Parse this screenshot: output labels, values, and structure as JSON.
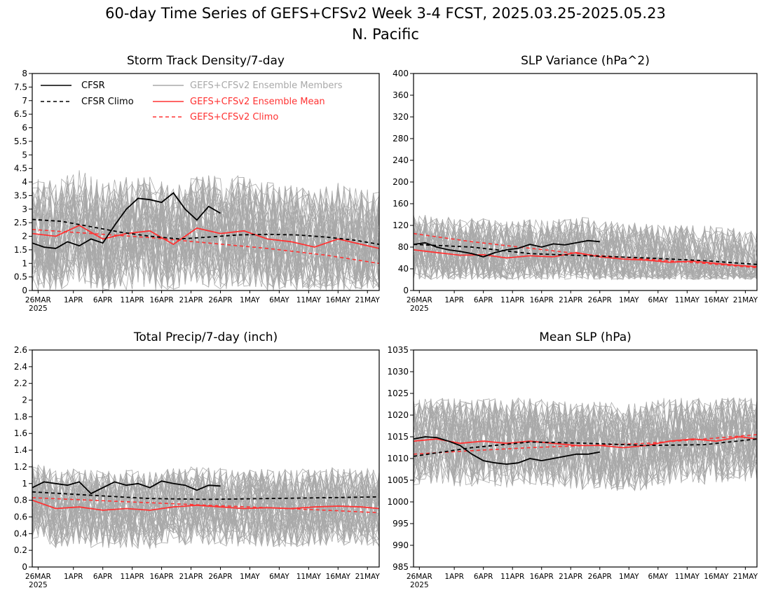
{
  "header": {
    "title_line1": "60-day Time Series of GEFS+CFSv2 Week 3-4 FCST, 2025.03.25-2025.05.23",
    "title_line2": "N. Pacific"
  },
  "colors": {
    "cfsr": "#000000",
    "members": "#a9a9a9",
    "ens_mean": "#ff3333",
    "gefs_climo": "#ff3333"
  },
  "legend": {
    "cfsr": "CFSR",
    "cfsr_climo": "CFSR Climo",
    "members": "GEFS+CFSv2 Ensemble Members",
    "ens_mean": "GEFS+CFSv2 Ensemble Mean",
    "gefs_climo": "GEFS+CFSv2 Climo"
  },
  "x_axis": {
    "year_label": "2025",
    "tick_labels": [
      "26MAR",
      "1APR",
      "6APR",
      "11APR",
      "16APR",
      "21APR",
      "26APR",
      "1MAY",
      "6MAY",
      "11MAY",
      "16MAY",
      "21MAY"
    ],
    "tick_days": [
      1,
      7,
      12,
      17,
      22,
      27,
      32,
      37,
      42,
      47,
      52,
      57
    ],
    "xlim": [
      0,
      59
    ]
  },
  "chart_data": [
    {
      "type": "line",
      "title": "Storm Track Density/7-day",
      "ylim": [
        0,
        8
      ],
      "yticks": [
        "0",
        "0.5",
        "1",
        "1.5",
        "2",
        "2.5",
        "3",
        "3.5",
        "4",
        "4.5",
        "5",
        "5.5",
        "6",
        "6.5",
        "7",
        "7.5",
        "8"
      ],
      "members_range": [
        0.0,
        4.9
      ],
      "cfsr_x": [
        0,
        2,
        4,
        6,
        8,
        10,
        12,
        14,
        16,
        18,
        20,
        22,
        24,
        26,
        28,
        30,
        32
      ],
      "cfsr_y": [
        1.75,
        1.6,
        1.55,
        1.8,
        1.65,
        1.9,
        1.75,
        2.4,
        3.0,
        3.4,
        3.35,
        3.25,
        3.6,
        3.0,
        2.6,
        3.1,
        2.85
      ],
      "cfsr_climo_x": [
        0,
        5,
        10,
        15,
        20,
        25,
        30,
        35,
        40,
        45,
        50,
        55,
        59
      ],
      "cfsr_climo_y": [
        2.62,
        2.55,
        2.35,
        2.15,
        2.0,
        1.9,
        1.97,
        2.05,
        2.07,
        2.05,
        1.97,
        1.85,
        1.7
      ],
      "ens_mean_x": [
        0,
        4,
        8,
        12,
        16,
        20,
        24,
        28,
        32,
        36,
        40,
        44,
        48,
        52,
        56,
        59
      ],
      "ens_mean_y": [
        2.1,
        2.0,
        2.4,
        1.9,
        2.1,
        2.2,
        1.7,
        2.3,
        2.1,
        2.2,
        1.9,
        1.8,
        1.6,
        1.9,
        1.7,
        1.55
      ],
      "gefs_climo_x": [
        0,
        10,
        20,
        30,
        40,
        50,
        59
      ],
      "gefs_climo_y": [
        2.25,
        2.1,
        1.95,
        1.75,
        1.55,
        1.3,
        1.0
      ]
    },
    {
      "type": "line",
      "title": "SLP Variance (hPa^2)",
      "ylim": [
        0,
        400
      ],
      "yticks": [
        "0",
        "40",
        "80",
        "120",
        "160",
        "200",
        "240",
        "280",
        "320",
        "360",
        "400"
      ],
      "members_range": [
        20,
        180
      ],
      "cfsr_x": [
        0,
        2,
        4,
        6,
        8,
        10,
        12,
        14,
        16,
        18,
        20,
        22,
        24,
        26,
        28,
        30,
        32
      ],
      "cfsr_y": [
        85,
        88,
        80,
        75,
        72,
        68,
        62,
        70,
        75,
        78,
        85,
        80,
        86,
        84,
        88,
        92,
        90
      ],
      "cfsr_climo_x": [
        0,
        10,
        20,
        30,
        40,
        50,
        59
      ],
      "cfsr_climo_y": [
        85,
        80,
        68,
        64,
        60,
        55,
        48
      ],
      "ens_mean_x": [
        0,
        4,
        8,
        12,
        16,
        20,
        24,
        28,
        32,
        36,
        40,
        44,
        48,
        52,
        56,
        59
      ],
      "ens_mean_y": [
        75,
        70,
        65,
        66,
        60,
        64,
        62,
        70,
        62,
        58,
        56,
        52,
        54,
        50,
        46,
        44
      ],
      "gefs_climo_x": [
        0,
        10,
        20,
        30,
        40,
        50,
        59
      ],
      "gefs_climo_y": [
        105,
        90,
        78,
        66,
        58,
        50,
        42
      ]
    },
    {
      "type": "line",
      "title": "Total Precip/7-day (inch)",
      "ylim": [
        0,
        2.6
      ],
      "yticks": [
        "0",
        "0.2",
        "0.4",
        "0.6",
        "0.8",
        "1",
        "1.2",
        "1.4",
        "1.6",
        "1.8",
        "2",
        "2.2",
        "2.4",
        "2.6"
      ],
      "members_range": [
        0.2,
        1.3
      ],
      "cfsr_x": [
        0,
        2,
        4,
        6,
        8,
        10,
        12,
        14,
        16,
        18,
        20,
        22,
        24,
        26,
        28,
        30,
        32
      ],
      "cfsr_y": [
        0.95,
        1.02,
        1.0,
        0.98,
        1.02,
        0.88,
        0.95,
        1.02,
        0.98,
        1.0,
        0.95,
        1.03,
        1.0,
        0.98,
        0.92,
        0.98,
        0.97
      ],
      "cfsr_climo_x": [
        0,
        10,
        20,
        30,
        40,
        50,
        59
      ],
      "cfsr_climo_y": [
        0.9,
        0.86,
        0.82,
        0.81,
        0.82,
        0.83,
        0.84
      ],
      "ens_mean_x": [
        0,
        4,
        8,
        12,
        16,
        20,
        24,
        28,
        32,
        36,
        40,
        44,
        48,
        52,
        56,
        59
      ],
      "ens_mean_y": [
        0.8,
        0.7,
        0.72,
        0.68,
        0.7,
        0.68,
        0.72,
        0.74,
        0.72,
        0.7,
        0.71,
        0.7,
        0.72,
        0.73,
        0.72,
        0.7
      ],
      "gefs_climo_x": [
        0,
        10,
        20,
        30,
        40,
        50,
        59
      ],
      "gefs_climo_y": [
        0.83,
        0.8,
        0.77,
        0.74,
        0.71,
        0.68,
        0.65
      ]
    },
    {
      "type": "line",
      "title": "Mean SLP (hPa)",
      "ylim": [
        985,
        1035
      ],
      "yticks": [
        "985",
        "990",
        "995",
        "1000",
        "1005",
        "1010",
        "1015",
        "1020",
        "1025",
        "1030",
        "1035"
      ],
      "members_range": [
        1000,
        1024
      ],
      "cfsr_x": [
        0,
        2,
        4,
        6,
        8,
        10,
        12,
        14,
        16,
        18,
        20,
        22,
        24,
        26,
        28,
        30,
        32
      ],
      "cfsr_y": [
        1014.5,
        1015,
        1014.8,
        1014,
        1013,
        1011,
        1009.5,
        1009,
        1008.7,
        1009,
        1010,
        1009.5,
        1010,
        1010.5,
        1011,
        1011,
        1011.5
      ],
      "cfsr_climo_x": [
        0,
        10,
        20,
        30,
        40,
        50,
        59
      ],
      "cfsr_climo_y": [
        1010.5,
        1012.5,
        1013.8,
        1013.5,
        1013,
        1013.2,
        1014.5
      ],
      "ens_mean_x": [
        0,
        4,
        8,
        12,
        16,
        20,
        24,
        28,
        32,
        36,
        40,
        44,
        48,
        52,
        56,
        59
      ],
      "ens_mean_y": [
        1014,
        1014.5,
        1013.5,
        1014,
        1013.5,
        1014,
        1013.5,
        1013,
        1013,
        1012.5,
        1013,
        1014,
        1014.5,
        1014,
        1015,
        1014.5
      ],
      "gefs_climo_x": [
        0,
        10,
        20,
        30,
        40,
        50,
        59
      ],
      "gefs_climo_y": [
        1011,
        1011.8,
        1012.5,
        1013,
        1013.5,
        1014.5,
        1015.5
      ]
    }
  ]
}
